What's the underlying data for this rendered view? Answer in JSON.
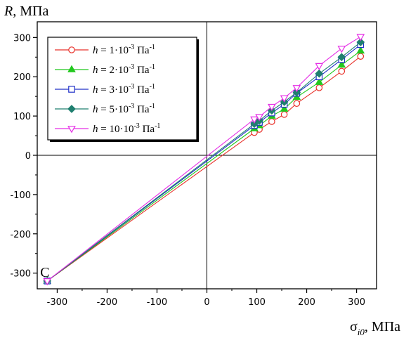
{
  "chart_data": {
    "type": "line",
    "title": "",
    "ylabel": {
      "symbol": "R",
      "unit": ", МПа"
    },
    "xlabel": {
      "symbol": "σ",
      "sub": "i0",
      "unit": ", МПа"
    },
    "xlim": [
      -340,
      340
    ],
    "ylim": [
      -340,
      340
    ],
    "x_ticks": [
      -300,
      -200,
      -100,
      0,
      100,
      200,
      300
    ],
    "y_ticks": [
      -300,
      -200,
      -100,
      0,
      100,
      200,
      300
    ],
    "grid": false,
    "zero_lines": true,
    "legend_placement": "top-left",
    "annotation": {
      "text": "C",
      "x": -320,
      "y": -320
    },
    "series": [
      {
        "name": {
          "prefix": "h",
          "mid": " = 1·10",
          "exp": "-3",
          "unit": " Па",
          "unit_exp": "-1"
        },
        "color": "#e8312a",
        "marker": "circle-open",
        "points": [
          [
            -320,
            -320
          ],
          [
            95,
            58
          ],
          [
            105,
            66
          ],
          [
            130,
            86
          ],
          [
            155,
            104
          ],
          [
            180,
            132
          ],
          [
            225,
            172
          ],
          [
            270,
            214
          ],
          [
            308,
            252
          ]
        ]
      },
      {
        "name": {
          "prefix": "h",
          "mid": " = 2·10",
          "exp": "-3",
          "unit": " Па",
          "unit_exp": "-1"
        },
        "color": "#22c81e",
        "marker": "triangle-filled",
        "points": [
          [
            -320,
            -320
          ],
          [
            95,
            68
          ],
          [
            105,
            76
          ],
          [
            130,
            100
          ],
          [
            155,
            118
          ],
          [
            180,
            148
          ],
          [
            225,
            186
          ],
          [
            270,
            230
          ],
          [
            308,
            266
          ]
        ]
      },
      {
        "name": {
          "prefix": "h",
          "mid": " = 3·10",
          "exp": "-3",
          "unit": " Па",
          "unit_exp": "-1"
        },
        "color": "#2031c8",
        "marker": "square-open",
        "points": [
          [
            -320,
            -320
          ],
          [
            95,
            76
          ],
          [
            105,
            84
          ],
          [
            130,
            108
          ],
          [
            155,
            130
          ],
          [
            180,
            158
          ],
          [
            225,
            200
          ],
          [
            270,
            244
          ],
          [
            308,
            282
          ]
        ]
      },
      {
        "name": {
          "prefix": "h",
          "mid": " = 5·10",
          "exp": "-3",
          "unit": " Па",
          "unit_exp": "-1"
        },
        "color": "#1f7f6f",
        "marker": "diamond-filled",
        "points": [
          [
            -320,
            -320
          ],
          [
            95,
            80
          ],
          [
            105,
            88
          ],
          [
            130,
            114
          ],
          [
            155,
            136
          ],
          [
            180,
            160
          ],
          [
            225,
            208
          ],
          [
            270,
            250
          ],
          [
            308,
            288
          ]
        ]
      },
      {
        "name": {
          "prefix": "h",
          "mid": " = 10·10",
          "exp": "-3",
          "unit": " Па",
          "unit_exp": "-1"
        },
        "color": "#e52de5",
        "marker": "triangle-down-open",
        "points": [
          [
            -320,
            -320
          ],
          [
            95,
            92
          ],
          [
            105,
            98
          ],
          [
            130,
            124
          ],
          [
            155,
            146
          ],
          [
            180,
            172
          ],
          [
            225,
            228
          ],
          [
            270,
            272
          ],
          [
            308,
            302
          ]
        ]
      }
    ]
  }
}
